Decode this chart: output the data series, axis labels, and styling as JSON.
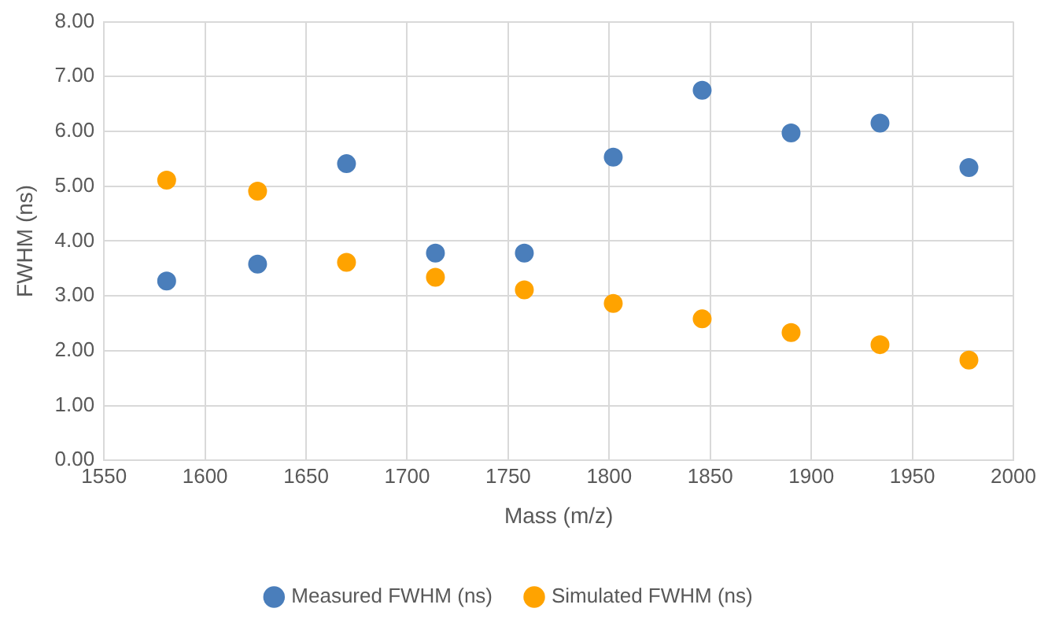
{
  "chart_data": {
    "type": "scatter",
    "xlabel": "Mass (m/z)",
    "ylabel": "FWHM (ns)",
    "xlim": [
      1550,
      2000
    ],
    "xticks": [
      1550,
      1600,
      1650,
      1700,
      1750,
      1800,
      1850,
      1900,
      1950,
      2000
    ],
    "ylim": [
      0,
      8
    ],
    "yticks": [
      {
        "value": 0,
        "label": "0.00"
      },
      {
        "value": 1,
        "label": "1.00"
      },
      {
        "value": 2,
        "label": "2.00"
      },
      {
        "value": 3,
        "label": "3.00"
      },
      {
        "value": 4,
        "label": "4.00"
      },
      {
        "value": 5,
        "label": "5.00"
      },
      {
        "value": 6,
        "label": "6.00"
      },
      {
        "value": 7,
        "label": "7.00"
      },
      {
        "value": 8,
        "label": "8.00"
      }
    ],
    "grid": true,
    "legend": "bottom",
    "marker": "circle",
    "x": [
      1581,
      1626,
      1670,
      1714,
      1758,
      1802,
      1846,
      1890,
      1934,
      1978
    ],
    "series": [
      {
        "name": "Measured FWHM (ns)",
        "color": "#4a7ebb",
        "values": [
          3.27,
          3.58,
          5.41,
          3.78,
          3.78,
          5.53,
          6.75,
          5.97,
          6.15,
          5.34
        ]
      },
      {
        "name": "Simulated FWHM (ns)",
        "color": "#ffa300",
        "values": [
          5.11,
          4.91,
          3.61,
          3.34,
          3.11,
          2.86,
          2.58,
          2.33,
          2.11,
          1.83
        ]
      }
    ]
  }
}
